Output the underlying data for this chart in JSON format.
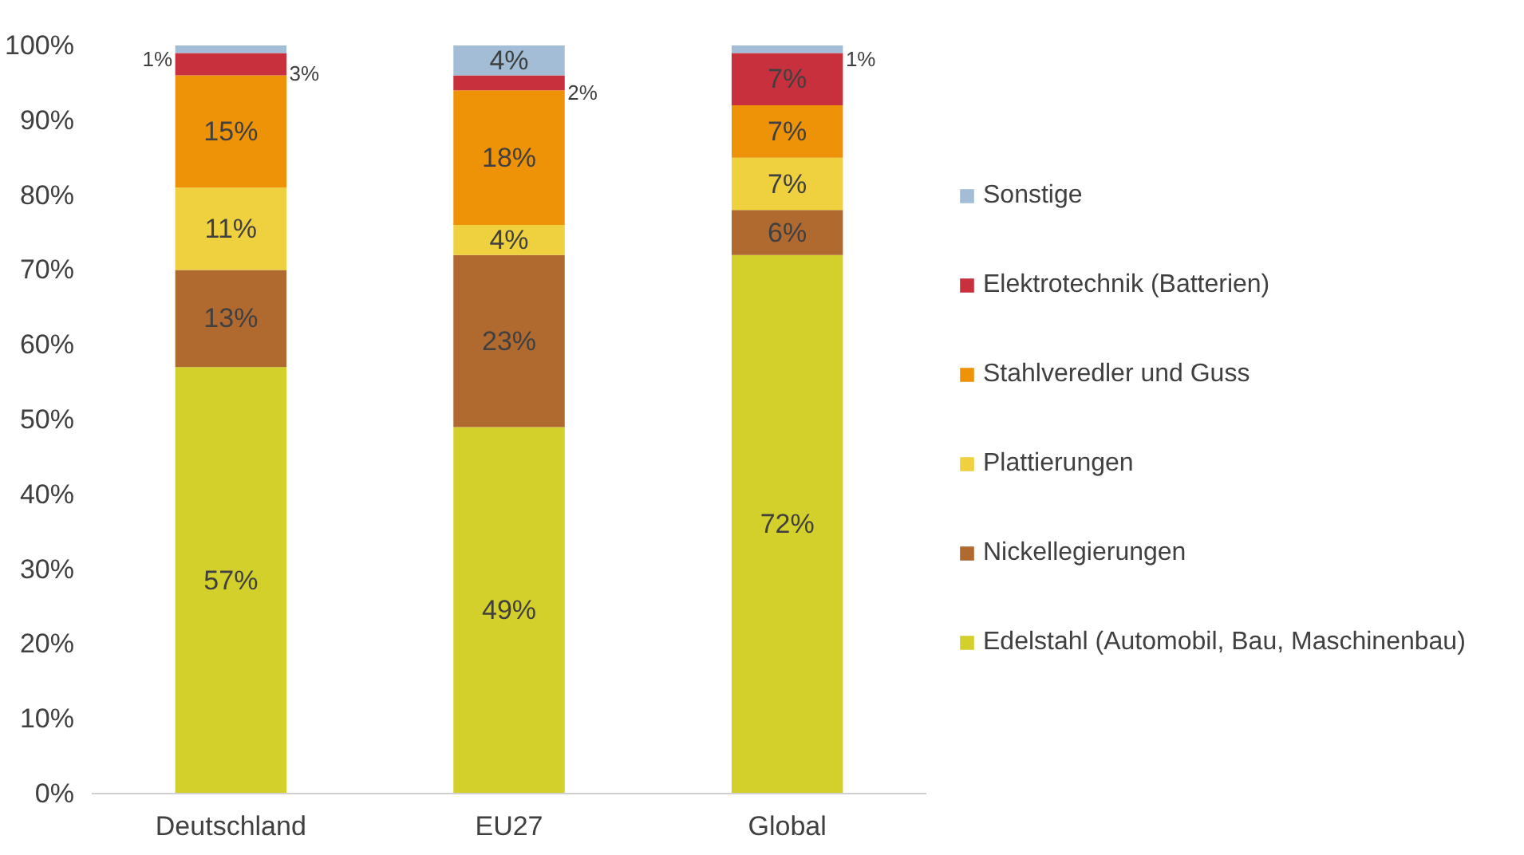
{
  "chart_data": {
    "type": "bar",
    "stacked": true,
    "categories": [
      "Deutschland",
      "EU27",
      "Global"
    ],
    "series": [
      {
        "name": "Edelstahl (Automobil, Bau, Maschinenbau)",
        "color": "#d3d02b",
        "values": [
          57,
          49,
          72
        ],
        "value_labels": [
          "57%",
          "49%",
          "72%"
        ]
      },
      {
        "name": "Nickellegierungen",
        "color": "#b06a30",
        "values": [
          13,
          23,
          6
        ],
        "value_labels": [
          "13%",
          "23%",
          "6%"
        ]
      },
      {
        "name": "Plattierungen",
        "color": "#efd03f",
        "values": [
          11,
          4,
          7
        ],
        "value_labels": [
          "11%",
          "4%",
          "7%"
        ]
      },
      {
        "name": "Stahlveredler und Guss",
        "color": "#ee9208",
        "values": [
          15,
          18,
          7
        ],
        "value_labels": [
          "15%",
          "18%",
          "7%"
        ]
      },
      {
        "name": "Elektrotechnik (Batterien)",
        "color": "#c8303e",
        "values": [
          3,
          2,
          7
        ],
        "value_labels": [
          "3%",
          "2%",
          "7%"
        ]
      },
      {
        "name": "Sonstige",
        "color": "#a2bdd5",
        "values": [
          1,
          4,
          1
        ],
        "value_labels": [
          "1%",
          "4%",
          "1%"
        ]
      }
    ],
    "ylim": [
      0,
      100
    ],
    "yticks": [
      {
        "value": 0,
        "label": "0%"
      },
      {
        "value": 10,
        "label": "10%"
      },
      {
        "value": 20,
        "label": "20%"
      },
      {
        "value": 30,
        "label": "30%"
      },
      {
        "value": 40,
        "label": "40%"
      },
      {
        "value": 50,
        "label": "50%"
      },
      {
        "value": 60,
        "label": "60%"
      },
      {
        "value": 70,
        "label": "70%"
      },
      {
        "value": 80,
        "label": "80%"
      },
      {
        "value": 90,
        "label": "90%"
      },
      {
        "value": 100,
        "label": "100%"
      }
    ],
    "grid": false,
    "legend": "right"
  }
}
